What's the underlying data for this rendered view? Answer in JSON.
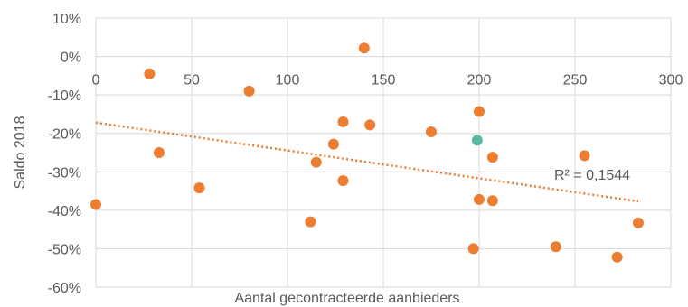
{
  "chart_data": {
    "type": "scatter",
    "xlabel": "Aantal gecontracteerde aanbieders",
    "ylabel": "Saldo 2018",
    "xlim": [
      0,
      300
    ],
    "ylim": [
      -0.6,
      0.1
    ],
    "x_ticks": [
      0,
      50,
      100,
      150,
      200,
      250,
      300
    ],
    "y_ticks": [
      0.1,
      0.0,
      -0.1,
      -0.2,
      -0.3,
      -0.4,
      -0.5,
      -0.6
    ],
    "x_tick_labels": [
      "0",
      "50",
      "100",
      "150",
      "200",
      "250",
      "300"
    ],
    "y_tick_labels": [
      "10%",
      "0%",
      "-10%",
      "-20%",
      "-30%",
      "-40%",
      "-50%",
      "-60%"
    ],
    "grid": "vertical-and-horizontal",
    "colors": {
      "points": "#ED7D31",
      "highlight": "#5BB8A6",
      "trendline": "#ED7D31",
      "grid": "#D9D9D9",
      "text": "#595959"
    },
    "series": [
      {
        "points": [
          {
            "x": 0,
            "y": -0.385
          },
          {
            "x": 28,
            "y": -0.045
          },
          {
            "x": 33,
            "y": -0.25
          },
          {
            "x": 54,
            "y": -0.342
          },
          {
            "x": 80,
            "y": -0.09
          },
          {
            "x": 112,
            "y": -0.43
          },
          {
            "x": 115,
            "y": -0.275
          },
          {
            "x": 124,
            "y": -0.228
          },
          {
            "x": 129,
            "y": -0.17
          },
          {
            "x": 129,
            "y": -0.323
          },
          {
            "x": 140,
            "y": 0.022
          },
          {
            "x": 143,
            "y": -0.178
          },
          {
            "x": 175,
            "y": -0.196
          },
          {
            "x": 197,
            "y": -0.5
          },
          {
            "x": 200,
            "y": -0.143
          },
          {
            "x": 200,
            "y": -0.372
          },
          {
            "x": 207,
            "y": -0.262
          },
          {
            "x": 207,
            "y": -0.375
          },
          {
            "x": 240,
            "y": -0.495
          },
          {
            "x": 255,
            "y": -0.258
          },
          {
            "x": 272,
            "y": -0.522
          },
          {
            "x": 283,
            "y": -0.433
          }
        ]
      },
      {
        "points": [
          {
            "x": 199,
            "y": -0.218
          }
        ]
      }
    ],
    "trendline": {
      "type": "linear",
      "x_start": 0,
      "y_start": -0.172,
      "x_end": 283,
      "y_end": -0.377,
      "label": "R² = 0,1544"
    }
  }
}
